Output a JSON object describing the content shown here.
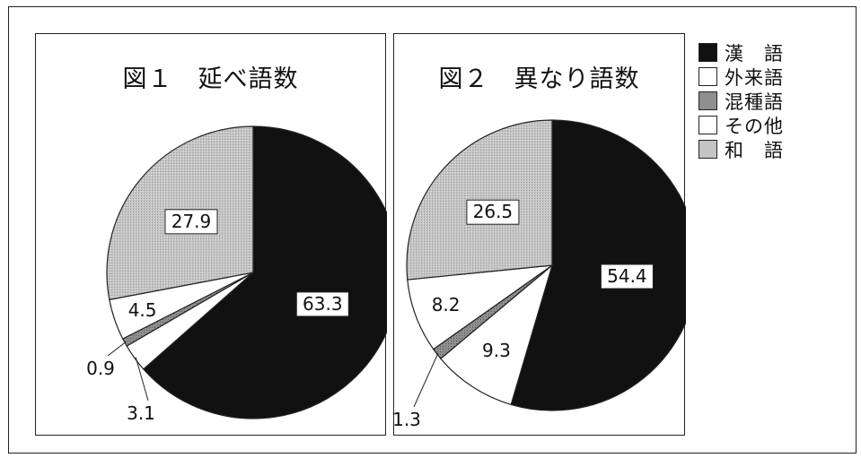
{
  "chart_data": [
    {
      "type": "pie",
      "title": "図１　延べ語数",
      "slices": [
        {
          "category": "漢　語",
          "value": 63.3,
          "label": "63.3"
        },
        {
          "category": "外来語",
          "value": 3.1,
          "label": "3.1"
        },
        {
          "category": "混種語",
          "value": 0.9,
          "label": "0.9"
        },
        {
          "category": "その他",
          "value": 4.5,
          "label": "4.5"
        },
        {
          "category": "和　語",
          "value": 27.9,
          "label": "27.9"
        }
      ]
    },
    {
      "type": "pie",
      "title": "図２　異なり語数",
      "slices": [
        {
          "category": "漢　語",
          "value": 54.4,
          "label": "54.4"
        },
        {
          "category": "外来語",
          "value": 9.3,
          "label": "9.3"
        },
        {
          "category": "混種語",
          "value": 1.3,
          "label": "1.3"
        },
        {
          "category": "その他",
          "value": 8.2,
          "label": "8.2"
        },
        {
          "category": "和　語",
          "value": 26.5,
          "label": "26.5"
        }
      ]
    }
  ],
  "legend": {
    "items": [
      {
        "label": "漢　語",
        "color": "#111111"
      },
      {
        "label": "外来語",
        "color": "#ffffff"
      },
      {
        "label": "混種語",
        "color": "#8f8f8f"
      },
      {
        "label": "その他",
        "color": "#ffffff"
      },
      {
        "label": "和　語",
        "color": "#c4c4c4"
      }
    ],
    "position": "right"
  }
}
